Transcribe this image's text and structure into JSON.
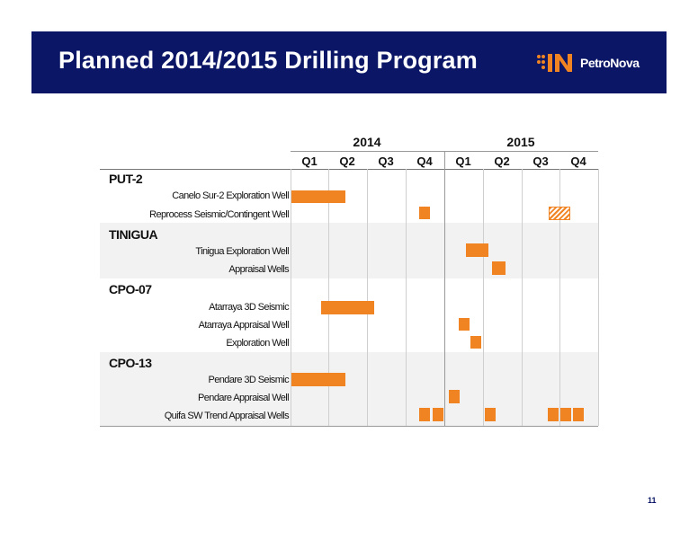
{
  "header": {
    "title": "Planned 2014/2015 Drilling Program",
    "logo_text": "PetroNova"
  },
  "page_number": "11",
  "gantt": {
    "years": [
      "2014",
      "2015"
    ],
    "quarters": [
      "Q1",
      "Q2",
      "Q3",
      "Q4",
      "Q1",
      "Q2",
      "Q3",
      "Q4"
    ],
    "groups": [
      {
        "name": "PUT-2",
        "tasks": [
          "Canelo Sur-2 Exploration Well",
          "Reprocess Seismic/Contingent Well"
        ]
      },
      {
        "name": "TINIGUA",
        "tasks": [
          "Tinigua Exploration Well",
          "Appraisal Wells"
        ]
      },
      {
        "name": "CPO-07",
        "tasks": [
          "Atarraya 3D Seismic",
          "Atarraya Appraisal Well",
          "Exploration Well"
        ]
      },
      {
        "name": "CPO-13",
        "tasks": [
          "Pendare 3D Seismic",
          "Pendare Appraisal Well",
          "Quifa SW Trend Appraisal Wells"
        ]
      }
    ],
    "colors": {
      "bar": "#f08422",
      "header_bg": "#0b1766"
    }
  }
}
